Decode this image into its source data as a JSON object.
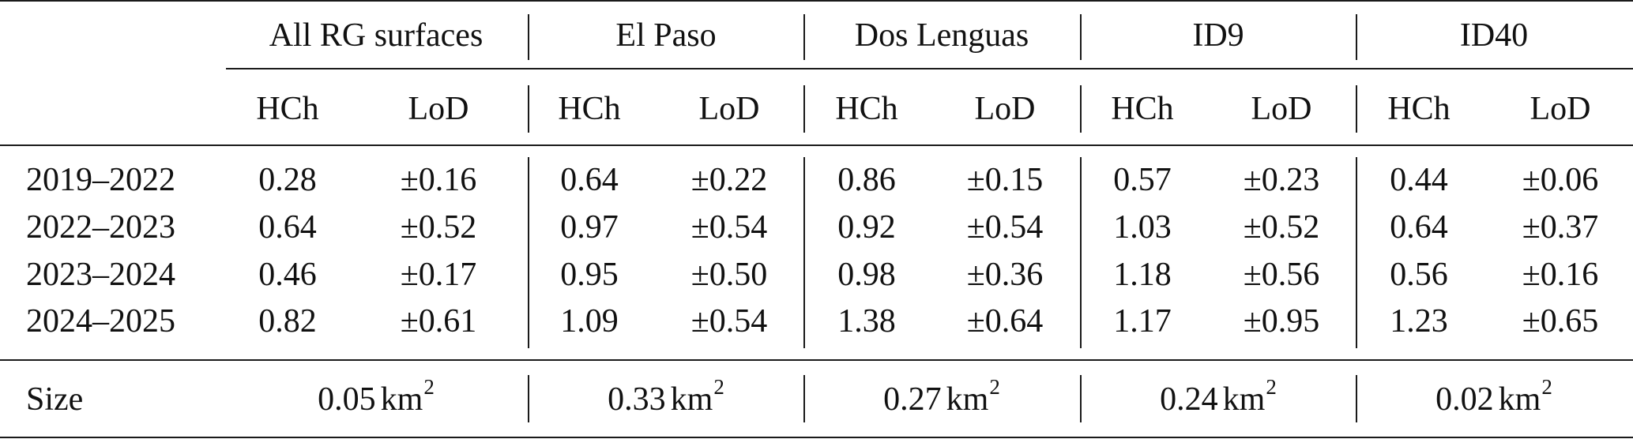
{
  "table": {
    "groups": [
      "All RG surfaces",
      "El Paso",
      "Dos Lenguas",
      "ID9",
      "ID40"
    ],
    "subheaders": [
      "HCh",
      "LoD"
    ],
    "rows": [
      {
        "period": "2019–2022",
        "values": [
          "0.28",
          "±0.16",
          "0.64",
          "±0.22",
          "0.86",
          "±0.15",
          "0.57",
          "±0.23",
          "0.44",
          "±0.06"
        ]
      },
      {
        "period": "2022–2023",
        "values": [
          "0.64",
          "±0.52",
          "0.97",
          "±0.54",
          "0.92",
          "±0.54",
          "1.03",
          "±0.52",
          "0.64",
          "±0.37"
        ]
      },
      {
        "period": "2023–2024",
        "values": [
          "0.46",
          "±0.17",
          "0.95",
          "±0.50",
          "0.98",
          "±0.36",
          "1.18",
          "±0.56",
          "0.56",
          "±0.16"
        ]
      },
      {
        "period": "2024–2025",
        "values": [
          "0.82",
          "±0.61",
          "1.09",
          "±0.54",
          "1.38",
          "±0.64",
          "1.17",
          "±0.95",
          "1.23",
          "±0.65"
        ]
      }
    ],
    "size": {
      "label": "Size",
      "values": [
        "0.05",
        "0.33",
        "0.27",
        "0.24",
        "0.02"
      ],
      "unit": "km",
      "exponent": "2"
    }
  }
}
